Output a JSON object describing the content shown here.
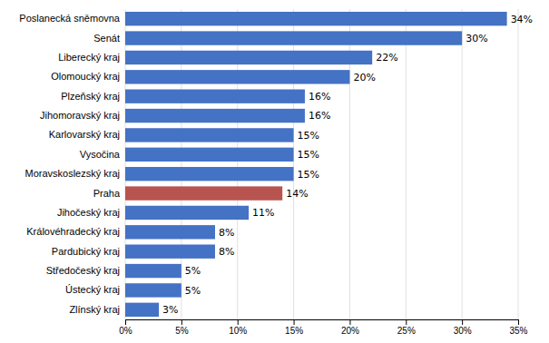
{
  "chart_data": {
    "type": "bar",
    "orientation": "horizontal",
    "categories": [
      "Poslanecká sněmovna",
      "Senát",
      "Liberecký kraj",
      "Olomoucký kraj",
      "Plzeňský kraj",
      "Jihomoravský kraj",
      "Karlovarský kraj",
      "Vysočina",
      "Moravskoslezský kraj",
      "Praha",
      "Jihočeský kraj",
      "Královéhradecký kraj",
      "Pardubický kraj",
      "Středočeský kraj",
      "Ústecký kraj",
      "Zlínský kraj"
    ],
    "values": [
      34,
      30,
      22,
      20,
      16,
      16,
      15,
      15,
      15,
      14,
      11,
      8,
      8,
      5,
      5,
      3
    ],
    "value_labels": [
      "34%",
      "30%",
      "22%",
      "20%",
      "16%",
      "16%",
      "15%",
      "15%",
      "15%",
      "14%",
      "11%",
      "8%",
      "8%",
      "5%",
      "5%",
      "3%"
    ],
    "data_labels": true,
    "colors": [
      "#4472C4",
      "#4472C4",
      "#4472C4",
      "#4472C4",
      "#4472C4",
      "#4472C4",
      "#4472C4",
      "#4472C4",
      "#4472C4",
      "#B85450",
      "#4472C4",
      "#4472C4",
      "#4472C4",
      "#4472C4",
      "#4472C4",
      "#4472C4"
    ],
    "xlim": [
      0,
      35
    ],
    "xticks": [
      {
        "value": 0,
        "label": "0%"
      },
      {
        "value": 5,
        "label": "5%"
      },
      {
        "value": 10,
        "label": "10%"
      },
      {
        "value": 15,
        "label": "15%"
      },
      {
        "value": 20,
        "label": "20%"
      },
      {
        "value": 25,
        "label": "25%"
      },
      {
        "value": 30,
        "label": "30%"
      },
      {
        "value": 35,
        "label": "35%"
      }
    ],
    "grid": true
  }
}
